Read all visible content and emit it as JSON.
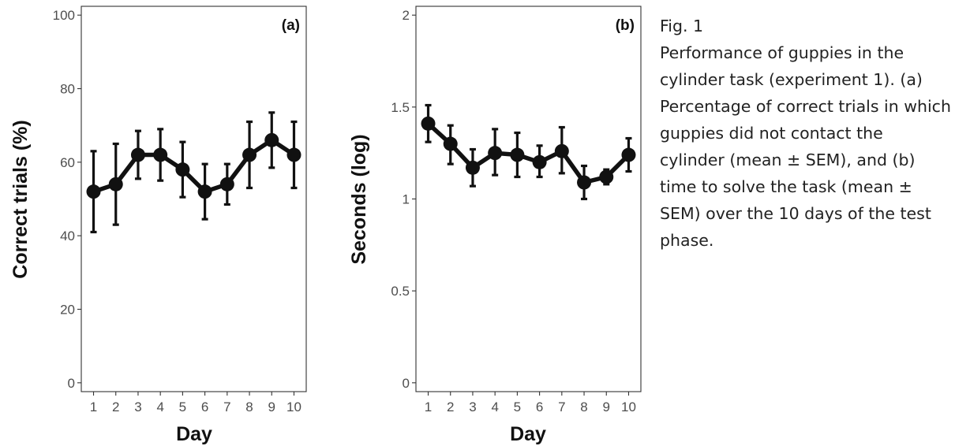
{
  "caption": {
    "figure_label": "Fig. 1",
    "text": "Performance of guppies in the cylinder task (experiment 1). (a) Percentage of correct trials in which guppies did not contact the cylinder (mean ± SEM), and (b) time to solve the task (mean ± SEM) over the 10 days of the test phase."
  },
  "colors": {
    "ink": "#111111",
    "axis": "#333333",
    "tick_label": "#4d4d4d"
  },
  "chart_data": [
    {
      "type": "line",
      "panel_label": "(a)",
      "xlabel": "Day",
      "ylabel": "Correct trials (%)",
      "x": [
        1,
        2,
        3,
        4,
        5,
        6,
        7,
        8,
        9,
        10
      ],
      "x_tick_labels": [
        "1",
        "2",
        "3",
        "4",
        "5",
        "6",
        "7",
        "8",
        "9",
        "10"
      ],
      "y_ticks": [
        0,
        20,
        40,
        60,
        80,
        100
      ],
      "y_tick_labels": [
        "0",
        "20",
        "40",
        "60",
        "80",
        "100"
      ],
      "xlim": [
        0.45,
        10.55
      ],
      "ylim": [
        -2.4,
        102.4
      ],
      "series": [
        {
          "values": [
            52,
            54,
            62,
            62,
            58,
            52,
            54,
            62,
            66,
            62
          ],
          "error_low": [
            41,
            43,
            55.5,
            55,
            50.5,
            44.5,
            48.5,
            53,
            58.5,
            53
          ],
          "error_high": [
            63,
            65,
            68.5,
            69,
            65.5,
            59.5,
            59.5,
            71,
            73.5,
            71
          ]
        }
      ],
      "grid": false,
      "marker": "circle",
      "error_bars": "mean ± SEM"
    },
    {
      "type": "line",
      "panel_label": "(b)",
      "xlabel": "Day",
      "ylabel": "Seconds (log)",
      "x": [
        1,
        2,
        3,
        4,
        5,
        6,
        7,
        8,
        9,
        10
      ],
      "x_tick_labels": [
        "1",
        "2",
        "3",
        "4",
        "5",
        "6",
        "7",
        "8",
        "9",
        "10"
      ],
      "y_ticks": [
        0,
        0.5,
        1,
        1.5,
        2
      ],
      "y_tick_labels": [
        "0",
        "0.5",
        "1",
        "1.5",
        "2"
      ],
      "xlim": [
        0.45,
        10.55
      ],
      "ylim": [
        -0.048,
        2.048
      ],
      "series": [
        {
          "values": [
            1.41,
            1.3,
            1.17,
            1.25,
            1.24,
            1.2,
            1.26,
            1.09,
            1.12,
            1.24
          ],
          "error_low": [
            1.31,
            1.19,
            1.07,
            1.13,
            1.12,
            1.12,
            1.14,
            1.0,
            1.08,
            1.15
          ],
          "error_high": [
            1.51,
            1.4,
            1.27,
            1.38,
            1.36,
            1.29,
            1.39,
            1.18,
            1.16,
            1.33
          ]
        }
      ],
      "grid": false,
      "marker": "circle",
      "error_bars": "mean ± SEM"
    }
  ]
}
